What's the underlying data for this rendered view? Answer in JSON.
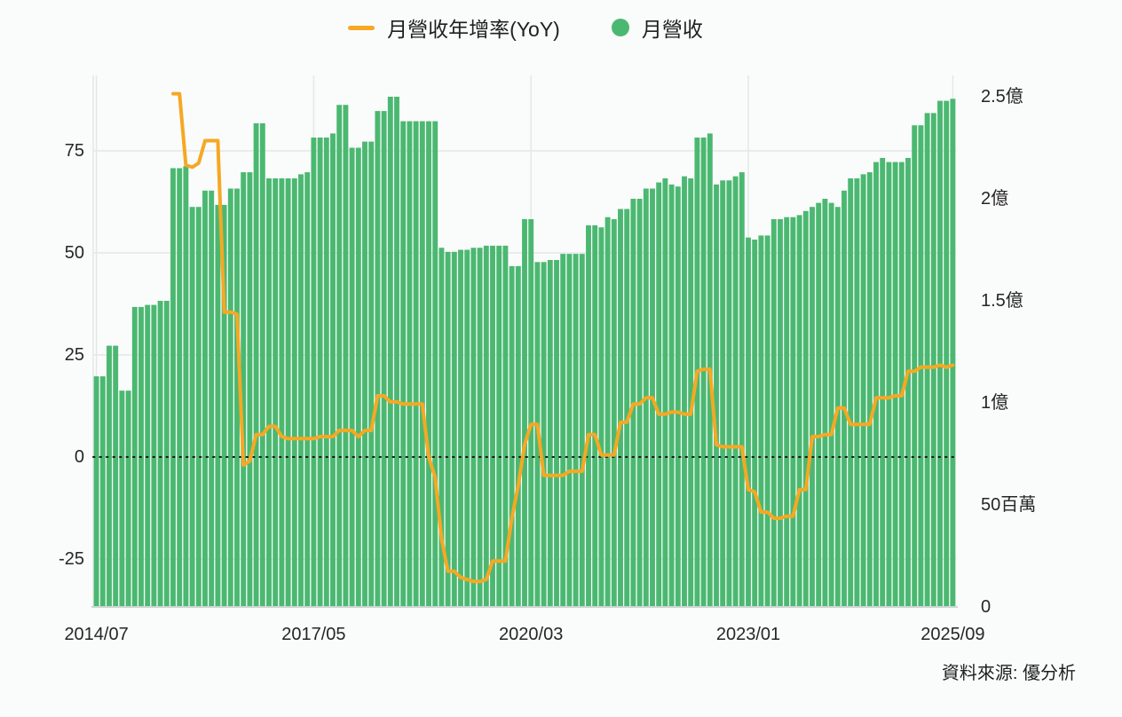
{
  "legend": {
    "yoy_label": "月營收年增率(YoY)",
    "revenue_label": "月營收"
  },
  "source": "資料來源: 優分析",
  "colors": {
    "bar": "#4bb871",
    "line": "#f6a823",
    "grid": "#e4e7e7",
    "axis_line": "#cfd4d4",
    "zero_line": "#1a1a1a",
    "text": "#262626",
    "background": "#fafbfb"
  },
  "chart_data": {
    "type": "bar+line combo, monthly time series",
    "title": "",
    "x_start": "2014/07",
    "x_end": "2025/09",
    "frequency": "monthly",
    "x_ticks": [
      {
        "label": "2014/07",
        "index": 0
      },
      {
        "label": "2017/05",
        "index": 34
      },
      {
        "label": "2020/03",
        "index": 68
      },
      {
        "label": "2023/01",
        "index": 102
      },
      {
        "label": "2025/09",
        "index": 134
      }
    ],
    "left_axis": {
      "unit": "%",
      "ticks": [
        75,
        50,
        25,
        0,
        -25
      ],
      "range": [
        -36.7,
        93.5
      ],
      "zero_line_dotted": true
    },
    "right_axis": {
      "unit": "NTD",
      "ticks": [
        {
          "label": "2.5億",
          "value": 250
        },
        {
          "label": "2億",
          "value": 200
        },
        {
          "label": "1.5億",
          "value": 150
        },
        {
          "label": "1億",
          "value": 100
        },
        {
          "label": "50百萬",
          "value": 50
        },
        {
          "label": "0",
          "value": 0
        }
      ],
      "range_millions": [
        0,
        260
      ]
    },
    "series": [
      {
        "name": "月營收",
        "type": "bar",
        "axis": "right",
        "unit": "百萬",
        "values": [
          113,
          113,
          128,
          128,
          106,
          106,
          147,
          147,
          148,
          148,
          150,
          150,
          215,
          215,
          216,
          196,
          196,
          204,
          204,
          197,
          197,
          205,
          205,
          213,
          213,
          237,
          237,
          210,
          210,
          210,
          210,
          210,
          212,
          213,
          230,
          230,
          230,
          232,
          246,
          246,
          225,
          225,
          228,
          228,
          243,
          243,
          250,
          250,
          238,
          238,
          238,
          238,
          238,
          238,
          176,
          174,
          174,
          175,
          175,
          176,
          176,
          177,
          177,
          177,
          177,
          167,
          167,
          190,
          190,
          169,
          169,
          170,
          170,
          173,
          173,
          173,
          173,
          187,
          187,
          186,
          191,
          190,
          195,
          195,
          200,
          200,
          205,
          205,
          208,
          210,
          207,
          206,
          211,
          210,
          230,
          230,
          232,
          207,
          209,
          209,
          211,
          213,
          181,
          180,
          182,
          182,
          190,
          190,
          191,
          191,
          192,
          194,
          196,
          198,
          200,
          198,
          196,
          204,
          210,
          210,
          212,
          213,
          218,
          220,
          218,
          218,
          218,
          220,
          236,
          236,
          242,
          242,
          248,
          248,
          249
        ]
      },
      {
        "name": "月營收年增率(YoY)",
        "type": "line",
        "axis": "left",
        "unit": "%",
        "values": [
          null,
          null,
          null,
          null,
          null,
          null,
          null,
          null,
          null,
          null,
          null,
          null,
          89,
          89,
          71.5,
          71,
          72,
          77.5,
          77.5,
          77.5,
          35.5,
          35.5,
          35,
          -2,
          -1,
          5.5,
          5.5,
          7.5,
          7.5,
          5,
          4.5,
          4.5,
          4.5,
          4.5,
          4.5,
          5,
          5,
          5,
          6.5,
          6.5,
          6.5,
          5,
          6.5,
          6.5,
          15,
          15,
          13.5,
          13.5,
          13,
          13,
          13,
          13,
          0,
          -5,
          -20,
          -28,
          -28,
          -29.5,
          -30,
          -30.5,
          -30.5,
          -30,
          -25.5,
          -25.5,
          -25.5,
          -15,
          -7,
          3,
          8,
          8,
          -4.5,
          -4.5,
          -4.5,
          -4.5,
          -3.5,
          -3.5,
          -3.5,
          5.5,
          5.5,
          0.5,
          0.5,
          0.5,
          8.5,
          8.5,
          13,
          13,
          14.5,
          14.5,
          10.5,
          10.5,
          11,
          11,
          10.5,
          10.5,
          21,
          21.5,
          21.5,
          3,
          2.5,
          2.5,
          2.5,
          2.5,
          -8,
          -8.5,
          -13.5,
          -13.5,
          -15,
          -15,
          -14.5,
          -14.5,
          -8,
          -8,
          5,
          5,
          5.5,
          5.5,
          12,
          12,
          8,
          8,
          8,
          8,
          14.5,
          14.5,
          14.5,
          15,
          15,
          21,
          21,
          22,
          22,
          22,
          22.5,
          22,
          22.5
        ]
      }
    ]
  }
}
